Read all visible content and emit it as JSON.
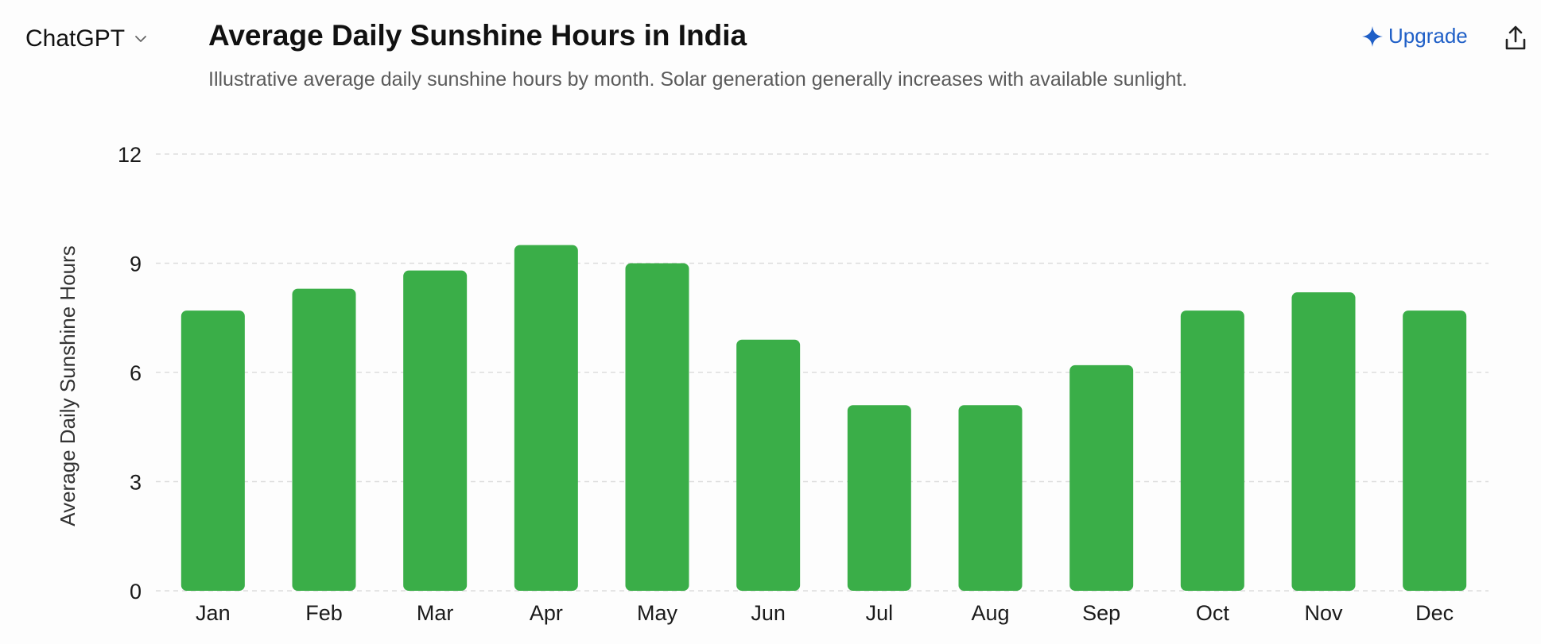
{
  "header": {
    "app_name": "ChatGPT",
    "upgrade_label": "Upgrade"
  },
  "colors": {
    "bar": "#3aae48",
    "grid": "#dddddd",
    "upgrade": "#1f5fc7"
  },
  "icons": {
    "app_switcher": "chevron-down-icon",
    "upgrade": "sparkle-icon",
    "share": "share-icon"
  },
  "chart_data": {
    "type": "bar",
    "title": "Average Daily Sunshine Hours in India",
    "subtitle": "Illustrative average daily sunshine hours by month. Solar generation generally increases with available sunlight.",
    "xlabel": "",
    "ylabel": "Average Daily Sunshine Hours",
    "categories": [
      "Jan",
      "Feb",
      "Mar",
      "Apr",
      "May",
      "Jun",
      "Jul",
      "Aug",
      "Sep",
      "Oct",
      "Nov",
      "Dec"
    ],
    "values": [
      7.7,
      8.3,
      8.8,
      9.5,
      9.0,
      6.9,
      5.1,
      5.1,
      6.2,
      7.7,
      8.2,
      7.7
    ],
    "ylim": [
      0,
      12
    ],
    "yticks": [
      "0",
      "3",
      "6",
      "9",
      "12"
    ],
    "grid": true,
    "legend": "none"
  }
}
